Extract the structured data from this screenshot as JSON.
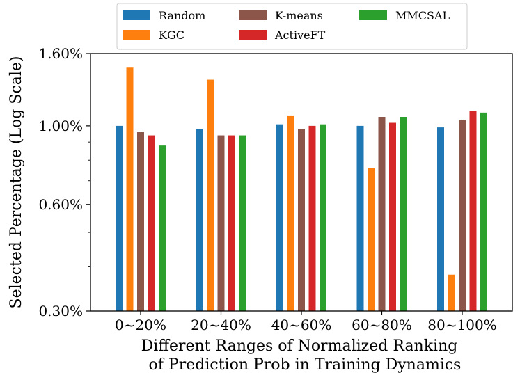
{
  "chart_data": {
    "type": "bar",
    "yscale": "log",
    "ylabel": "Selected Percentage (Log Scale)",
    "xlabel_lines": [
      "Different Ranges of Normalized Ranking",
      "of Prediction Prob in Training Dynamics"
    ],
    "ylim": [
      0.3,
      1.6
    ],
    "yticks": [
      {
        "value": 0.3,
        "label": "0.30%"
      },
      {
        "value": 0.6,
        "label": "0.60%"
      },
      {
        "value": 1.0,
        "label": "1.00%"
      },
      {
        "value": 1.6,
        "label": "1.60%"
      }
    ],
    "minor_yticks": [
      0.4,
      0.5,
      0.7,
      0.8,
      0.9
    ],
    "categories": [
      "0~20%",
      "20~40%",
      "40~60%",
      "60~80%",
      "80~100%"
    ],
    "legend_position": "top-center, outside plot",
    "series": [
      {
        "name": "Random",
        "color": "#1f77b4",
        "values": [
          1.0,
          0.98,
          1.01,
          1.0,
          0.99
        ]
      },
      {
        "name": "KGC",
        "color": "#ff7f0e",
        "values": [
          1.46,
          1.35,
          1.07,
          0.76,
          0.38
        ]
      },
      {
        "name": "K-means",
        "color": "#8c564b",
        "values": [
          0.96,
          0.94,
          0.98,
          1.06,
          1.04
        ]
      },
      {
        "name": "ActiveFT",
        "color": "#d62728",
        "values": [
          0.94,
          0.94,
          1.0,
          1.02,
          1.1
        ]
      },
      {
        "name": "MMCSAL",
        "color": "#2ca02c",
        "values": [
          0.88,
          0.94,
          1.01,
          1.06,
          1.09
        ]
      }
    ]
  }
}
